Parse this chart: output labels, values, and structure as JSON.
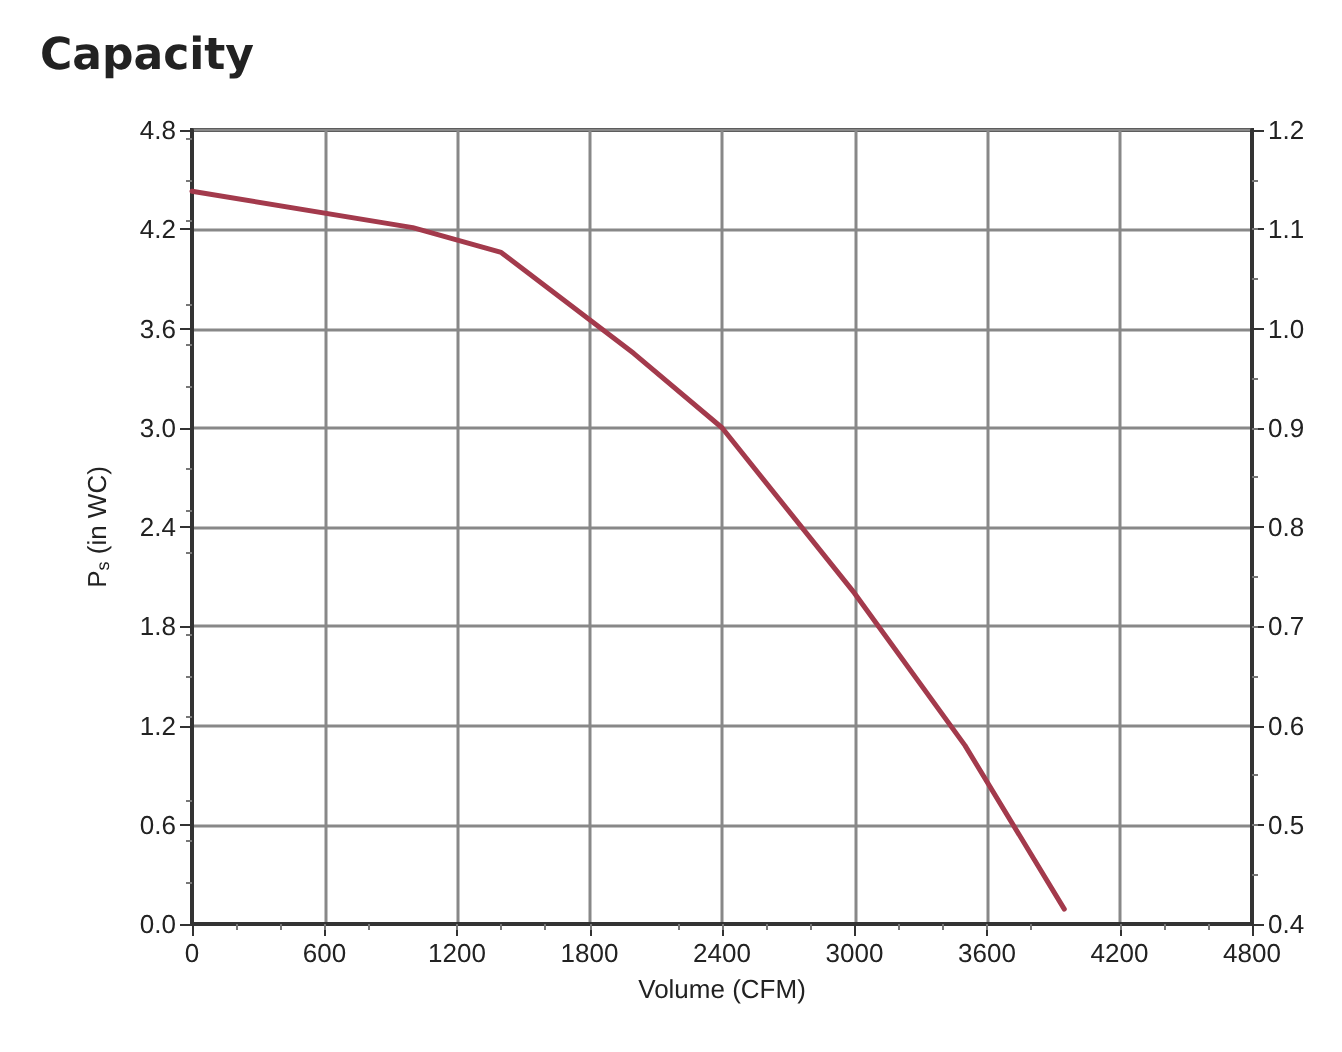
{
  "chart_data": {
    "type": "line",
    "title": "Capacity",
    "xlabel": "Volume (CFM)",
    "ylabel": "P$_{s}$ (in WC)",
    "x": [
      0,
      1000,
      1400,
      2000,
      2400,
      3000,
      3500,
      3950
    ],
    "series": [
      {
        "color": "#a33a4c",
        "values": [
          4.43,
          4.21,
          4.06,
          3.45,
          3.0,
          2.0,
          1.08,
          0.09
        ]
      }
    ],
    "xlim": [
      0,
      4800
    ],
    "xticks": [
      0,
      600,
      1200,
      1800,
      2400,
      3000,
      3600,
      4200,
      4800
    ],
    "ylim": [
      0,
      4.8
    ],
    "yticks": [
      {
        "value": 0,
        "label": "0.0"
      },
      0.6,
      1.2,
      1.8,
      2.4,
      {
        "value": 3,
        "label": "3.0"
      },
      3.6,
      4.2,
      4.8
    ],
    "y2lim": [
      0.4,
      1.2
    ],
    "y2ticks": [
      0.4,
      0.5,
      0.6,
      0.7,
      0.8,
      0.9,
      {
        "value": 1,
        "label": "1.0"
      },
      1.1,
      1.2
    ],
    "grid": true,
    "marker": "none",
    "line_style": "solid"
  }
}
